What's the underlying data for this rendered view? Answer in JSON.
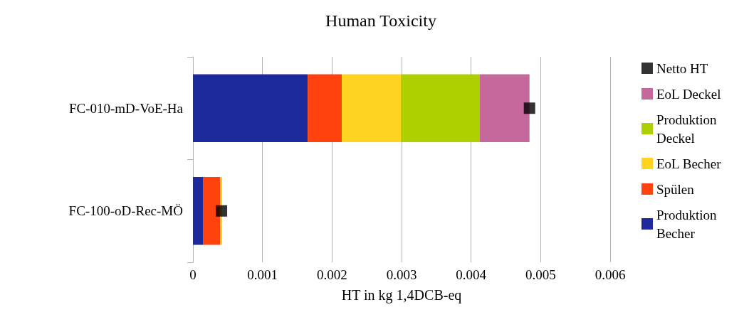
{
  "chart_data": {
    "type": "bar",
    "title": "Human Toxicity",
    "xlabel": "HT in kg 1,4DCB-eq",
    "orientation": "horizontal",
    "stacked": true,
    "categories": [
      "FC-010-mD-VoE-Ha",
      "FC-100-oD-Rec-MÖ"
    ],
    "series": [
      {
        "name": "Produktion Becher",
        "color": "#1c2a9c",
        "values": [
          0.00165,
          0.00015
        ]
      },
      {
        "name": "Spülen",
        "color": "#ff420e",
        "values": [
          0.00049,
          0.00024
        ]
      },
      {
        "name": "EoL Becher",
        "color": "#ffd320",
        "values": [
          0.00085,
          3e-05
        ]
      },
      {
        "name": "Produktion Deckel",
        "color": "#aecf00",
        "values": [
          0.00113,
          0
        ]
      },
      {
        "name": "EoL Deckel",
        "color": "#c5689b",
        "values": [
          0.00072,
          0
        ]
      },
      {
        "name": "Netto HT",
        "type": "scatter",
        "marker": "square",
        "color": "#000000",
        "x": [
          "FC-010-mD-VoE-Ha",
          "FC-100-oD-Rec-MÖ"
        ],
        "values": [
          0.00484,
          0.00041
        ]
      }
    ],
    "xlim": [
      0,
      0.006
    ],
    "xticks": [
      0,
      0.001,
      0.002,
      0.003,
      0.004,
      0.005,
      0.006
    ],
    "grid": "x",
    "legend": "right"
  }
}
